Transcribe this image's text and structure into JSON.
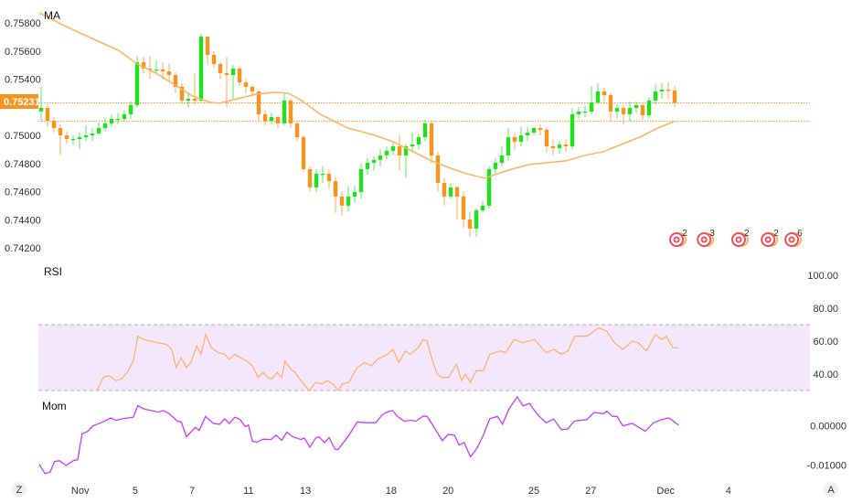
{
  "colors": {
    "up": "#1fe21f",
    "down": "#f7941d",
    "ma": "#ffb45a",
    "rsi": "#ffb062",
    "rsi_band": "#f4e6fd",
    "rsi_band_line": "#b8a8c0",
    "mom": "#c73cff",
    "price_tag": "#f7941d"
  },
  "chart_data": {
    "type": "candlestick",
    "panes": [
      "price",
      "rsi",
      "mom"
    ],
    "price": {
      "title": "MA",
      "yticks": [
        "0.75800",
        "0.75600",
        "0.75400",
        "0.75231",
        "0.75000",
        "0.74800",
        "0.74600",
        "0.74400",
        "0.74200"
      ],
      "ytick_values": [
        0.758,
        0.756,
        0.754,
        0.75,
        0.748,
        0.746,
        0.744,
        0.742
      ],
      "ylim": [
        0.7418,
        0.7595
      ],
      "last_price": 0.75231,
      "last_price_label": "0.75231",
      "ma_last": 0.751,
      "first_open": 0.7517,
      "close": [
        0.75195,
        0.75104,
        0.75052,
        0.75,
        0.74974,
        0.74974,
        0.74987,
        0.75,
        0.75013,
        0.75052,
        0.75085,
        0.75117,
        0.75117,
        0.7515,
        0.75215,
        0.7552,
        0.75475,
        0.75468,
        0.75468,
        0.75455,
        0.75429,
        0.75345,
        0.75247,
        0.7526,
        0.75247,
        0.75702,
        0.75572,
        0.75507,
        0.75442,
        0.75429,
        0.75475,
        0.75377,
        0.75345,
        0.75312,
        0.7515,
        0.75104,
        0.7513,
        0.75085,
        0.75247,
        0.75085,
        0.74987,
        0.7476,
        0.7463,
        0.74727,
        0.74727,
        0.74675,
        0.74565,
        0.745,
        0.74565,
        0.74597,
        0.7476,
        0.74805,
        0.74825,
        0.74857,
        0.7489,
        0.74922,
        0.74857,
        0.74922,
        0.74935,
        0.74987,
        0.75085,
        0.74857,
        0.74662,
        0.74565,
        0.7463,
        0.74565,
        0.74402,
        0.74337,
        0.74467,
        0.745,
        0.7476,
        0.74805,
        0.74857,
        0.74987,
        0.74955,
        0.75,
        0.7502,
        0.75052,
        0.75039,
        0.74922,
        0.74909,
        0.74935,
        0.74922,
        0.7515,
        0.75169,
        0.75169,
        0.75234,
        0.75312,
        0.75286,
        0.75169,
        0.75195,
        0.7515,
        0.75195,
        0.75215,
        0.75143,
        0.75247,
        0.75312,
        0.75325,
        0.75319,
        0.75231
      ],
      "high": [
        0.7535,
        0.7522,
        0.7513,
        0.7508,
        0.7503,
        0.75,
        0.7502,
        0.7507,
        0.7505,
        0.7509,
        0.7512,
        0.7515,
        0.7516,
        0.7518,
        0.7524,
        0.7556,
        0.7556,
        0.7556,
        0.7553,
        0.7552,
        0.7551,
        0.7545,
        0.7537,
        0.753,
        0.7544,
        0.7572,
        0.757,
        0.756,
        0.7552,
        0.7556,
        0.755,
        0.7549,
        0.754,
        0.7536,
        0.7532,
        0.7518,
        0.7516,
        0.7514,
        0.753,
        0.7526,
        0.751,
        0.75,
        0.7478,
        0.7476,
        0.7478,
        0.7476,
        0.747,
        0.746,
        0.7464,
        0.7464,
        0.748,
        0.7484,
        0.7485,
        0.749,
        0.7492,
        0.7495,
        0.75,
        0.7494,
        0.7502,
        0.7501,
        0.7511,
        0.751,
        0.7488,
        0.747,
        0.7466,
        0.7464,
        0.746,
        0.7446,
        0.7448,
        0.7453,
        0.7478,
        0.7484,
        0.7492,
        0.7505,
        0.7502,
        0.7506,
        0.7506,
        0.7506,
        0.7508,
        0.7506,
        0.7497,
        0.7496,
        0.7497,
        0.7519,
        0.752,
        0.7521,
        0.7535,
        0.7537,
        0.7534,
        0.753,
        0.7522,
        0.7521,
        0.7524,
        0.7524,
        0.7522,
        0.7527,
        0.7536,
        0.7537,
        0.7538,
        0.7535
      ],
      "low": [
        0.751,
        0.7506,
        0.7502,
        0.7486,
        0.7494,
        0.7493,
        0.749,
        0.7496,
        0.7496,
        0.75,
        0.7503,
        0.7506,
        0.7508,
        0.751,
        0.7512,
        0.752,
        0.7544,
        0.754,
        0.7544,
        0.754,
        0.7538,
        0.753,
        0.7522,
        0.752,
        0.7522,
        0.7524,
        0.755,
        0.7548,
        0.754,
        0.752,
        0.7526,
        0.7535,
        0.753,
        0.7528,
        0.751,
        0.7507,
        0.7508,
        0.7505,
        0.7507,
        0.7505,
        0.7496,
        0.7474,
        0.746,
        0.746,
        0.7466,
        0.7462,
        0.7445,
        0.7443,
        0.7446,
        0.7452,
        0.7455,
        0.7472,
        0.7475,
        0.7478,
        0.7483,
        0.7486,
        0.7475,
        0.747,
        0.7488,
        0.749,
        0.7496,
        0.748,
        0.746,
        0.745,
        0.7455,
        0.744,
        0.7434,
        0.7428,
        0.7428,
        0.7445,
        0.7448,
        0.7472,
        0.7478,
        0.7482,
        0.749,
        0.7492,
        0.7496,
        0.75,
        0.75,
        0.7488,
        0.7486,
        0.7487,
        0.7488,
        0.749,
        0.7512,
        0.7513,
        0.7515,
        0.7522,
        0.7524,
        0.751,
        0.7512,
        0.7508,
        0.751,
        0.7516,
        0.7511,
        0.7512,
        0.7522,
        0.7526,
        0.7526,
        0.752
      ],
      "ma": [
        [
          -0.3,
          0.75872
        ],
        [
          3.6,
          0.75781
        ],
        [
          7.9,
          0.7569
        ],
        [
          12.1,
          0.75605
        ],
        [
          15,
          0.75508
        ],
        [
          17.9,
          0.75443
        ],
        [
          20.7,
          0.75365
        ],
        [
          23.6,
          0.7528
        ],
        [
          26.4,
          0.75235
        ],
        [
          27.9,
          0.75228
        ],
        [
          30.7,
          0.75261
        ],
        [
          33.6,
          0.75293
        ],
        [
          36.4,
          0.75306
        ],
        [
          38.6,
          0.753
        ],
        [
          40.7,
          0.75248
        ],
        [
          43.6,
          0.7515
        ],
        [
          47.9,
          0.75053
        ],
        [
          52.1,
          0.75001
        ],
        [
          55,
          0.74955
        ],
        [
          57.9,
          0.7489
        ],
        [
          60.7,
          0.74825
        ],
        [
          63.6,
          0.74773
        ],
        [
          66.4,
          0.74728
        ],
        [
          69.3,
          0.74695
        ],
        [
          71.4,
          0.74728
        ],
        [
          73.6,
          0.7476
        ],
        [
          76.4,
          0.74793
        ],
        [
          79.3,
          0.74806
        ],
        [
          82.1,
          0.74819
        ],
        [
          85,
          0.74858
        ],
        [
          87.9,
          0.74884
        ],
        [
          90.7,
          0.74936
        ],
        [
          93.6,
          0.74988
        ],
        [
          96.4,
          0.75053
        ],
        [
          98.9,
          0.75098
        ]
      ]
    },
    "events": [
      {
        "bar": 99.3,
        "count": "2"
      },
      {
        "bar": 103.6,
        "count": "3"
      },
      {
        "bar": 109,
        "count": "2"
      },
      {
        "bar": 113.6,
        "count": "2"
      },
      {
        "bar": 117.3,
        "count": "6"
      }
    ],
    "rsi": {
      "title": "RSI",
      "yticks": [
        "100.00",
        "80.00",
        "60.00",
        "40.00"
      ],
      "ytick_values": [
        100,
        80,
        60,
        40
      ],
      "band": [
        30,
        70
      ],
      "points": [
        [
          8.7,
          30
        ],
        [
          9.7,
          38
        ],
        [
          10.6,
          39
        ],
        [
          11.7,
          36
        ],
        [
          12.6,
          37
        ],
        [
          13.6,
          42
        ],
        [
          14.4,
          48
        ],
        [
          15.1,
          63
        ],
        [
          16,
          61
        ],
        [
          18.3,
          59
        ],
        [
          19.6,
          58
        ],
        [
          20.4,
          55
        ],
        [
          21.1,
          44
        ],
        [
          21.9,
          50
        ],
        [
          22.7,
          44
        ],
        [
          23.4,
          47
        ],
        [
          24.3,
          57
        ],
        [
          25,
          52
        ],
        [
          25.7,
          64
        ],
        [
          26.6,
          56
        ],
        [
          27.7,
          53
        ],
        [
          28.7,
          52
        ],
        [
          29.4,
          49
        ],
        [
          30.3,
          52
        ],
        [
          31.1,
          50
        ],
        [
          32.1,
          48
        ],
        [
          33,
          45
        ],
        [
          33.9,
          38
        ],
        [
          34.7,
          41
        ],
        [
          35.4,
          38
        ],
        [
          36,
          37
        ],
        [
          36.9,
          41
        ],
        [
          37.6,
          38
        ],
        [
          38.1,
          48
        ],
        [
          39,
          43
        ],
        [
          39.7,
          41
        ],
        [
          40.6,
          36
        ],
        [
          41.9,
          30
        ],
        [
          42.9,
          35
        ],
        [
          43.9,
          34
        ],
        [
          44.7,
          36
        ],
        [
          45.6,
          34
        ],
        [
          46.4,
          30
        ],
        [
          47.1,
          34
        ],
        [
          48.1,
          35
        ],
        [
          49.4,
          44
        ],
        [
          50.6,
          47
        ],
        [
          51.6,
          45
        ],
        [
          52.6,
          49
        ],
        [
          54.1,
          52
        ],
        [
          55,
          55
        ],
        [
          55.9,
          47
        ],
        [
          56.9,
          54
        ],
        [
          57.7,
          52
        ],
        [
          58.9,
          56
        ],
        [
          59.7,
          61
        ],
        [
          60.3,
          60
        ],
        [
          61.1,
          49
        ],
        [
          61.9,
          40
        ],
        [
          62.6,
          38
        ],
        [
          63.7,
          38
        ],
        [
          64.9,
          46
        ],
        [
          65.7,
          36
        ],
        [
          66.3,
          40
        ],
        [
          67.1,
          35
        ],
        [
          68,
          42
        ],
        [
          69.1,
          42
        ],
        [
          70.1,
          52
        ],
        [
          71.7,
          54
        ],
        [
          72.6,
          53
        ],
        [
          73.9,
          61
        ],
        [
          75.3,
          59
        ],
        [
          77.1,
          61
        ],
        [
          78.9,
          53
        ],
        [
          80.1,
          55
        ],
        [
          81.3,
          52
        ],
        [
          82.3,
          54
        ],
        [
          83.4,
          63
        ],
        [
          85.3,
          63
        ],
        [
          87.1,
          68
        ],
        [
          88.4,
          66
        ],
        [
          89.6,
          59
        ],
        [
          90.9,
          55
        ],
        [
          92.4,
          60
        ],
        [
          93.3,
          59
        ],
        [
          94.6,
          54
        ],
        [
          96,
          64
        ],
        [
          97,
          61
        ],
        [
          97.7,
          63
        ],
        [
          98.7,
          56
        ],
        [
          99.6,
          56
        ]
      ]
    },
    "mom": {
      "title": "Mom",
      "yticks": [
        "0.00000",
        "-0.01000"
      ],
      "ytick_values": [
        0,
        -0.01
      ],
      "points": [
        [
          -0.3,
          -0.0098
        ],
        [
          0.6,
          -0.0122
        ],
        [
          1.4,
          -0.0118
        ],
        [
          2.1,
          -0.0091
        ],
        [
          2.9,
          -0.0089
        ],
        [
          3.9,
          -0.0101
        ],
        [
          5.1,
          -0.0088
        ],
        [
          5.7,
          -0.0087
        ],
        [
          6.4,
          -0.0021
        ],
        [
          7.3,
          -0.0014
        ],
        [
          8.1,
          0
        ],
        [
          9.4,
          0.0008
        ],
        [
          10.4,
          0.0016
        ],
        [
          10.9,
          0.002
        ],
        [
          11.7,
          0.0014
        ],
        [
          12.7,
          0.0018
        ],
        [
          14.4,
          0.0022
        ],
        [
          15.1,
          0.0051
        ],
        [
          16.1,
          0.0043
        ],
        [
          18.3,
          0.0035
        ],
        [
          19.1,
          0.0039
        ],
        [
          20,
          0.0031
        ],
        [
          21.3,
          0.0012
        ],
        [
          21.9,
          0.001
        ],
        [
          22.7,
          -0.0028
        ],
        [
          24.1,
          -0.0004
        ],
        [
          24.7,
          -0.0012
        ],
        [
          25.7,
          0.0024
        ],
        [
          26.9,
          0.0006
        ],
        [
          27.9,
          0.0004
        ],
        [
          28.7,
          0.0018
        ],
        [
          29.4,
          0.0006
        ],
        [
          30.3,
          0.0022
        ],
        [
          31.1,
          0.0016
        ],
        [
          31.9,
          -0.0002
        ],
        [
          32.4,
          0.0002
        ],
        [
          33,
          -0.0039
        ],
        [
          33.7,
          -0.0042
        ],
        [
          34.7,
          -0.0034
        ],
        [
          35.9,
          -0.0035
        ],
        [
          36.7,
          -0.0024
        ],
        [
          37.6,
          -0.0037
        ],
        [
          38.4,
          -0.0016
        ],
        [
          39.3,
          -0.0028
        ],
        [
          40.6,
          -0.0035
        ],
        [
          41.1,
          -0.0031
        ],
        [
          42,
          -0.0054
        ],
        [
          42.9,
          -0.0031
        ],
        [
          43.4,
          -0.0028
        ],
        [
          44.3,
          -0.0043
        ],
        [
          45,
          -0.003
        ],
        [
          45.9,
          -0.0059
        ],
        [
          46.4,
          -0.0061
        ],
        [
          48.1,
          -0.0024
        ],
        [
          49.4,
          0.001
        ],
        [
          50.6,
          0.0008
        ],
        [
          52.3,
          0.0008
        ],
        [
          53.3,
          0.0028
        ],
        [
          53.9,
          0.0034
        ],
        [
          54.9,
          0.0039
        ],
        [
          55.7,
          0.0024
        ],
        [
          56.7,
          0.0012
        ],
        [
          57.7,
          0.0014
        ],
        [
          58.6,
          0.0012
        ],
        [
          59.7,
          0.0025
        ],
        [
          60.3,
          0.0024
        ],
        [
          61.1,
          0.0004
        ],
        [
          62.7,
          -0.0038
        ],
        [
          63.6,
          -0.0022
        ],
        [
          64.6,
          -0.0024
        ],
        [
          65.3,
          -0.0049
        ],
        [
          66.1,
          -0.0043
        ],
        [
          67.1,
          -0.0079
        ],
        [
          68.1,
          -0.0057
        ],
        [
          69.1,
          -0.0024
        ],
        [
          70.1,
          0.0018
        ],
        [
          71.3,
          0.0024
        ],
        [
          72.1,
          0.0004
        ],
        [
          73.1,
          0.0043
        ],
        [
          74.4,
          0.0074
        ],
        [
          75.3,
          0.0051
        ],
        [
          76.3,
          0.0057
        ],
        [
          77.6,
          0.0028
        ],
        [
          78.9,
          0.0008
        ],
        [
          80.1,
          0.0017
        ],
        [
          81.3,
          -0.001
        ],
        [
          82.3,
          -0.0008
        ],
        [
          83.3,
          0.0012
        ],
        [
          85.3,
          0.0016
        ],
        [
          86.4,
          0.0034
        ],
        [
          87.9,
          0.0031
        ],
        [
          88.4,
          0.0037
        ],
        [
          89.3,
          0.0024
        ],
        [
          90,
          0.0024
        ],
        [
          90.9,
          0
        ],
        [
          92.4,
          0.0006
        ],
        [
          93.4,
          -0.0004
        ],
        [
          94.4,
          -0.0014
        ],
        [
          95.7,
          0.0008
        ],
        [
          97,
          0.0016
        ],
        [
          98.1,
          0.002
        ],
        [
          99.6,
          0.0002
        ]
      ]
    },
    "xticks": [
      {
        "label": "Nov",
        "bar": 6.1
      },
      {
        "label": "5",
        "bar": 14.7
      },
      {
        "label": "7",
        "bar": 23.6
      },
      {
        "label": "11",
        "bar": 32.4
      },
      {
        "label": "13",
        "bar": 41.3
      },
      {
        "label": "18",
        "bar": 54.7
      },
      {
        "label": "20",
        "bar": 63.6
      },
      {
        "label": "25",
        "bar": 77
      },
      {
        "label": "27",
        "bar": 85.9
      },
      {
        "label": "Dec",
        "bar": 97.6
      },
      {
        "label": "4",
        "bar": 107.4
      }
    ]
  },
  "controls": {
    "zoom_label": "Z",
    "auto_label": "A"
  }
}
